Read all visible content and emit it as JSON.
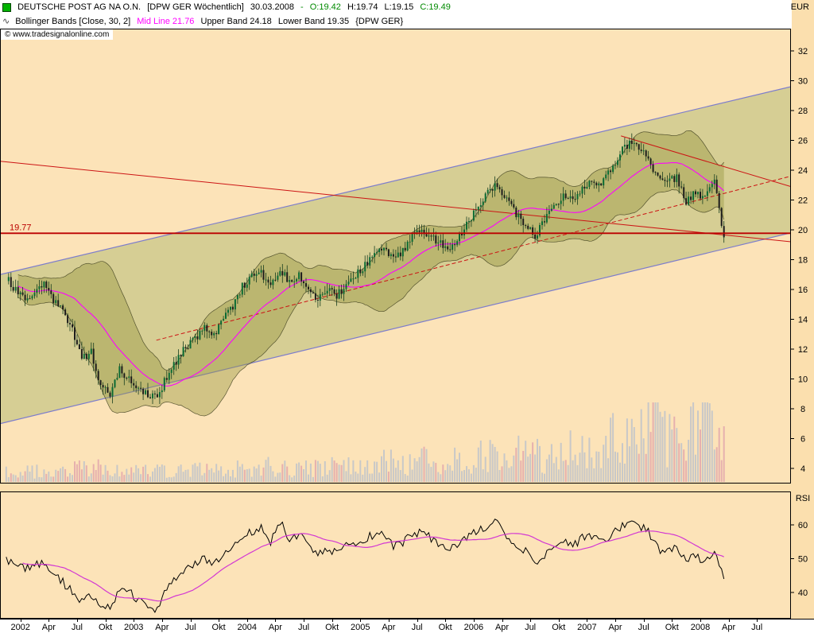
{
  "header": {
    "instrument_legend": {
      "title": "DEUTSCHE POST AG NA O.N.",
      "symbol_info": "[DPW GER  Wöchentlich]",
      "date": "30.03.2008",
      "sep": "-",
      "open": "O:19.42",
      "high": "H:19.74",
      "low": "L:19.15",
      "close": "C:19.49"
    },
    "indicator_legend": {
      "icon": "∿",
      "name": "Bollinger Bands [Close, 30, 2]",
      "mid": "Mid Line 21.76",
      "upper": "Upper Band 24.18",
      "lower": "Lower Band 19.35",
      "symbol": "{DPW GER}"
    },
    "watermark": "© www.tradesignalonline.com"
  },
  "axes": {
    "price_axis_label": "EUR",
    "price_ticks": [
      32,
      30,
      28,
      26,
      24,
      22,
      20,
      18,
      16,
      14,
      12,
      10,
      8,
      6,
      4
    ],
    "rsi_axis_label": "RSI",
    "rsi_ticks": [
      60,
      50,
      40
    ],
    "time_labels": [
      "2002",
      "Apr",
      "Jul",
      "Okt",
      "2003",
      "Apr",
      "Jul",
      "Okt",
      "2004",
      "Apr",
      "Jul",
      "Okt",
      "2005",
      "Apr",
      "Jul",
      "Okt",
      "2006",
      "Apr",
      "Jul",
      "Okt",
      "2007",
      "Apr",
      "Jul",
      "Okt",
      "2008",
      "Apr",
      "Jul"
    ]
  },
  "chart_data": {
    "type": "candlestick",
    "title": "DEUTSCHE POST AG NA O.N. [DPW GER Wöchentlich]",
    "period": "weekly",
    "ylabel": "EUR",
    "ylim": [
      4,
      32
    ],
    "x_domain": [
      2001.82,
      2008.8
    ],
    "x_start_year": 2001.875,
    "x_step": "1 month anchors (rendered as interpolated weeks)",
    "last_bar": {
      "date": "30.03.2008",
      "open": 19.42,
      "high": 19.74,
      "low": 19.15,
      "close": 19.49
    },
    "bollinger": {
      "source": "Close",
      "period": 30,
      "stddev": 2,
      "mid": 21.76,
      "upper": 24.18,
      "lower": 19.35
    },
    "monthly_close": [
      16.8,
      15.9,
      15.2,
      15.8,
      16.4,
      15.2,
      14.6,
      13.2,
      11.4,
      11.8,
      9.6,
      8.9,
      10.6,
      10.1,
      9.4,
      8.9,
      8.7,
      10.2,
      11.2,
      12.1,
      12.6,
      13.6,
      12.9,
      14.1,
      14.9,
      16.2,
      16.9,
      17.1,
      16.1,
      17.4,
      16.4,
      16.9,
      16.1,
      15.3,
      15.9,
      15.6,
      16.3,
      16.9,
      17.6,
      18.3,
      18.8,
      18.1,
      18.6,
      19.6,
      19.9,
      19.6,
      19.1,
      18.9,
      19.6,
      20.6,
      21.6,
      22.6,
      23.1,
      22.1,
      21.1,
      20.4,
      19.6,
      20.6,
      21.6,
      22.4,
      22.1,
      22.9,
      23.4,
      22.9,
      24.1,
      25.1,
      25.9,
      25.4,
      24.9,
      23.4,
      23.1,
      23.6,
      21.9,
      22.6,
      22.1,
      23.2,
      19.5
    ],
    "monthly_rsi": [
      50,
      48,
      47,
      48,
      49,
      45,
      43,
      40,
      37,
      39,
      36,
      35,
      41,
      40,
      38,
      36,
      35,
      41,
      44,
      47,
      48,
      50,
      48,
      51,
      53,
      56,
      58,
      59,
      55,
      61,
      56,
      57,
      54,
      51,
      53,
      52,
      54,
      55,
      56,
      57,
      58,
      54,
      55,
      57,
      58,
      56,
      54,
      53,
      55,
      57,
      58,
      60,
      61,
      57,
      54,
      52,
      48,
      51,
      54,
      56,
      54,
      56,
      57,
      55,
      57,
      59,
      61,
      60,
      58,
      53,
      52,
      53,
      49,
      51,
      49,
      52,
      44
    ],
    "monthly_volume_rel": [
      0.1,
      0.1,
      0.1,
      0.1,
      0.12,
      0.1,
      0.1,
      0.12,
      0.15,
      0.12,
      0.15,
      0.14,
      0.12,
      0.1,
      0.12,
      0.12,
      0.15,
      0.13,
      0.12,
      0.12,
      0.13,
      0.12,
      0.14,
      0.13,
      0.13,
      0.14,
      0.15,
      0.14,
      0.16,
      0.15,
      0.14,
      0.14,
      0.15,
      0.14,
      0.15,
      0.15,
      0.16,
      0.15,
      0.18,
      0.17,
      0.2,
      0.22,
      0.18,
      0.2,
      0.22,
      0.2,
      0.22,
      0.25,
      0.22,
      0.2,
      0.25,
      0.28,
      0.3,
      0.28,
      0.35,
      0.3,
      0.28,
      0.25,
      0.28,
      0.3,
      0.32,
      0.28,
      0.35,
      0.38,
      0.45,
      0.4,
      0.45,
      0.5,
      0.55,
      0.6,
      0.45,
      0.5,
      0.55,
      0.5,
      0.6,
      0.55,
      0.7
    ],
    "annotations": {
      "horizontal_line": {
        "value": 19.77,
        "label": "19.77",
        "color": "#bb0000"
      },
      "trend_channel": {
        "upper": [
          [
            2001.82,
            17.0
          ],
          [
            2008.8,
            29.6
          ]
        ],
        "lower": [
          [
            2001.82,
            7.0
          ],
          [
            2008.8,
            19.8
          ]
        ],
        "color": "#7d7dcc"
      },
      "resistance_long": {
        "points": [
          [
            2001.82,
            24.6
          ],
          [
            2008.8,
            19.2
          ]
        ],
        "color": "#cc1414"
      },
      "resistance_2007": {
        "points": [
          [
            2007.3,
            26.3
          ],
          [
            2008.8,
            22.9
          ]
        ],
        "color": "#cc1414"
      },
      "support_dashed": {
        "points": [
          [
            2003.2,
            12.6
          ],
          [
            2008.8,
            23.6
          ]
        ],
        "color": "#cc1414",
        "dashed": true
      }
    },
    "rsi_panel": {
      "label": "RSI",
      "ticks": [
        60,
        50,
        40
      ],
      "ma_period": 26
    },
    "colors": {
      "plot_bg": "#fce3b8",
      "channel_fill": "rgba(176,186,112,0.5)",
      "channel_line": "#7d7dcc",
      "band_fill": "rgba(150,150,62,0.42)",
      "band_edge": "rgba(55,55,25,0.8)",
      "mid_line": "#ff00ff",
      "candle_up": "#0a6b33",
      "candle_down": "#1c1c1c",
      "wick": "#173d1f",
      "volume_up": "#c8c8c8",
      "volume_down": "#e6b0ae",
      "trend_line": "#cc1414",
      "rsi_line": "#000000",
      "rsi_ma": "#d338d3"
    }
  }
}
